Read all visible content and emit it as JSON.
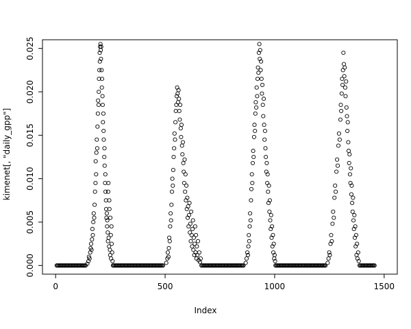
{
  "figure": {
    "background": "#ffffff",
    "point_color": "#000000",
    "axis_color": "#000000"
  },
  "chart_data": {
    "type": "scatter",
    "title": "",
    "xlabel": "Index",
    "ylabel": "kimenet[, \"daily_gpp\"]",
    "marker": "open-circle",
    "grid": false,
    "legend": false,
    "xlim": [
      -60,
      1560
    ],
    "ylim": [
      -0.001,
      0.026
    ],
    "x_ticks": [
      0,
      500,
      1000,
      1500
    ],
    "x_tick_labels": [
      "0",
      "500",
      "1000",
      "1500"
    ],
    "y_ticks": [
      0,
      0.005,
      0.01,
      0.015,
      0.02,
      0.025
    ],
    "y_tick_labels": [
      "0.000",
      "0.005",
      "0.010",
      "0.015",
      "0.020",
      "0.025"
    ],
    "zero_runs": [
      [
        5,
        140
      ],
      [
        262,
        492
      ],
      [
        666,
        858
      ],
      [
        1004,
        1232
      ],
      [
        1388,
        1458
      ]
    ],
    "zero_run_step": 4,
    "points": [
      [
        145,
        0.0002
      ],
      [
        150,
        0.0005
      ],
      [
        152,
        0.001
      ],
      [
        155,
        0.0008
      ],
      [
        158,
        0.0015
      ],
      [
        160,
        0.002
      ],
      [
        162,
        0.0025
      ],
      [
        164,
        0.0018
      ],
      [
        166,
        0.003
      ],
      [
        168,
        0.0042
      ],
      [
        170,
        0.0035
      ],
      [
        172,
        0.005
      ],
      [
        174,
        0.006
      ],
      [
        176,
        0.0055
      ],
      [
        178,
        0.007
      ],
      [
        180,
        0.0085
      ],
      [
        182,
        0.0095
      ],
      [
        183,
        0.012
      ],
      [
        185,
        0.0105
      ],
      [
        186,
        0.013
      ],
      [
        188,
        0.0145
      ],
      [
        190,
        0.0135
      ],
      [
        191,
        0.016
      ],
      [
        193,
        0.0175
      ],
      [
        194,
        0.019
      ],
      [
        196,
        0.0185
      ],
      [
        197,
        0.02
      ],
      [
        198,
        0.0215
      ],
      [
        200,
        0.0225
      ],
      [
        201,
        0.0245
      ],
      [
        202,
        0.0235
      ],
      [
        203,
        0.0252
      ],
      [
        205,
        0.0255
      ],
      [
        206,
        0.0248
      ],
      [
        207,
        0.0238
      ],
      [
        208,
        0.0252
      ],
      [
        210,
        0.0225
      ],
      [
        211,
        0.0205
      ],
      [
        212,
        0.0215
      ],
      [
        214,
        0.0195
      ],
      [
        215,
        0.0185
      ],
      [
        216,
        0.0165
      ],
      [
        218,
        0.0175
      ],
      [
        219,
        0.0155
      ],
      [
        220,
        0.0145
      ],
      [
        222,
        0.0125
      ],
      [
        223,
        0.0135
      ],
      [
        224,
        0.0115
      ],
      [
        226,
        0.0095
      ],
      [
        227,
        0.0105
      ],
      [
        228,
        0.0085
      ],
      [
        230,
        0.0075
      ],
      [
        231,
        0.0065
      ],
      [
        232,
        0.0055
      ],
      [
        234,
        0.006
      ],
      [
        235,
        0.0045
      ],
      [
        236,
        0.0052
      ],
      [
        238,
        0.0038
      ],
      [
        239,
        0.0028
      ],
      [
        240,
        0.0085
      ],
      [
        241,
        0.0095
      ],
      [
        242,
        0.0032
      ],
      [
        244,
        0.0022
      ],
      [
        245,
        0.0075
      ],
      [
        246,
        0.0065
      ],
      [
        248,
        0.0018
      ],
      [
        249,
        0.0012
      ],
      [
        250,
        0.0055
      ],
      [
        252,
        0.0035
      ],
      [
        253,
        0.0008
      ],
      [
        255,
        0.0045
      ],
      [
        256,
        0.0025
      ],
      [
        258,
        0.0015
      ],
      [
        260,
        0.0005
      ],
      [
        505,
        0.0003
      ],
      [
        510,
        0.0008
      ],
      [
        512,
        0.0015
      ],
      [
        515,
        0.001
      ],
      [
        517,
        0.002
      ],
      [
        519,
        0.0032
      ],
      [
        521,
        0.0028
      ],
      [
        523,
        0.0045
      ],
      [
        525,
        0.006
      ],
      [
        527,
        0.0052
      ],
      [
        529,
        0.007
      ],
      [
        531,
        0.0085
      ],
      [
        533,
        0.01
      ],
      [
        535,
        0.0092
      ],
      [
        537,
        0.011
      ],
      [
        539,
        0.0125
      ],
      [
        541,
        0.0135
      ],
      [
        543,
        0.0152
      ],
      [
        545,
        0.0145
      ],
      [
        547,
        0.0165
      ],
      [
        549,
        0.0178
      ],
      [
        551,
        0.0185
      ],
      [
        553,
        0.0195
      ],
      [
        555,
        0.0205
      ],
      [
        557,
        0.0198
      ],
      [
        559,
        0.0188
      ],
      [
        561,
        0.0202
      ],
      [
        563,
        0.0192
      ],
      [
        565,
        0.0178
      ],
      [
        567,
        0.0168
      ],
      [
        569,
        0.0185
      ],
      [
        571,
        0.0158
      ],
      [
        573,
        0.0148
      ],
      [
        575,
        0.0162
      ],
      [
        577,
        0.0138
      ],
      [
        579,
        0.0128
      ],
      [
        581,
        0.0142
      ],
      [
        583,
        0.0118
      ],
      [
        585,
        0.0108
      ],
      [
        587,
        0.0095
      ],
      [
        589,
        0.0122
      ],
      [
        591,
        0.0085
      ],
      [
        593,
        0.0105
      ],
      [
        595,
        0.0075
      ],
      [
        597,
        0.0092
      ],
      [
        599,
        0.0065
      ],
      [
        601,
        0.0078
      ],
      [
        603,
        0.0055
      ],
      [
        605,
        0.0068
      ],
      [
        607,
        0.0045
      ],
      [
        609,
        0.0058
      ],
      [
        611,
        0.0072
      ],
      [
        613,
        0.0038
      ],
      [
        615,
        0.0048
      ],
      [
        617,
        0.0028
      ],
      [
        619,
        0.0062
      ],
      [
        621,
        0.0035
      ],
      [
        623,
        0.0022
      ],
      [
        625,
        0.0042
      ],
      [
        627,
        0.0052
      ],
      [
        629,
        0.0018
      ],
      [
        631,
        0.0032
      ],
      [
        633,
        0.0012
      ],
      [
        635,
        0.0025
      ],
      [
        637,
        0.0045
      ],
      [
        639,
        0.0015
      ],
      [
        641,
        0.0035
      ],
      [
        643,
        0.0008
      ],
      [
        645,
        0.0022
      ],
      [
        647,
        0.0012
      ],
      [
        650,
        0.0028
      ],
      [
        653,
        0.0006
      ],
      [
        656,
        0.0015
      ],
      [
        659,
        0.0004
      ],
      [
        662,
        0.0008
      ],
      [
        868,
        0.0003
      ],
      [
        872,
        0.0008
      ],
      [
        875,
        0.0015
      ],
      [
        878,
        0.0012
      ],
      [
        880,
        0.0022
      ],
      [
        882,
        0.0035
      ],
      [
        884,
        0.0028
      ],
      [
        886,
        0.0045
      ],
      [
        888,
        0.006
      ],
      [
        890,
        0.0052
      ],
      [
        892,
        0.0075
      ],
      [
        894,
        0.0088
      ],
      [
        896,
        0.0105
      ],
      [
        898,
        0.0095
      ],
      [
        900,
        0.0118
      ],
      [
        902,
        0.0132
      ],
      [
        904,
        0.0125
      ],
      [
        906,
        0.0148
      ],
      [
        908,
        0.0162
      ],
      [
        910,
        0.0155
      ],
      [
        912,
        0.0175
      ],
      [
        914,
        0.0188
      ],
      [
        916,
        0.0182
      ],
      [
        918,
        0.0205
      ],
      [
        920,
        0.0195
      ],
      [
        922,
        0.0215
      ],
      [
        924,
        0.0228
      ],
      [
        926,
        0.0222
      ],
      [
        928,
        0.0245
      ],
      [
        930,
        0.0255
      ],
      [
        932,
        0.0238
      ],
      [
        934,
        0.0248
      ],
      [
        936,
        0.0225
      ],
      [
        938,
        0.0235
      ],
      [
        940,
        0.0215
      ],
      [
        942,
        0.0198
      ],
      [
        944,
        0.0208
      ],
      [
        946,
        0.0185
      ],
      [
        948,
        0.0172
      ],
      [
        950,
        0.0192
      ],
      [
        952,
        0.0162
      ],
      [
        954,
        0.0145
      ],
      [
        956,
        0.0155
      ],
      [
        958,
        0.0135
      ],
      [
        960,
        0.0125
      ],
      [
        962,
        0.0108
      ],
      [
        964,
        0.0118
      ],
      [
        966,
        0.0095
      ],
      [
        968,
        0.0105
      ],
      [
        970,
        0.0085
      ],
      [
        972,
        0.0072
      ],
      [
        974,
        0.0092
      ],
      [
        976,
        0.0062
      ],
      [
        978,
        0.0075
      ],
      [
        980,
        0.0052
      ],
      [
        982,
        0.0042
      ],
      [
        984,
        0.0058
      ],
      [
        986,
        0.0032
      ],
      [
        988,
        0.0045
      ],
      [
        990,
        0.0022
      ],
      [
        992,
        0.0035
      ],
      [
        994,
        0.0015
      ],
      [
        996,
        0.0025
      ],
      [
        998,
        0.0008
      ],
      [
        1000,
        0.0012
      ],
      [
        1002,
        0.0005
      ],
      [
        1242,
        0.0003
      ],
      [
        1246,
        0.0008
      ],
      [
        1249,
        0.0015
      ],
      [
        1252,
        0.0012
      ],
      [
        1255,
        0.0025
      ],
      [
        1258,
        0.0035
      ],
      [
        1261,
        0.0028
      ],
      [
        1264,
        0.0048
      ],
      [
        1267,
        0.0062
      ],
      [
        1270,
        0.0055
      ],
      [
        1273,
        0.0078
      ],
      [
        1276,
        0.0092
      ],
      [
        1279,
        0.0085
      ],
      [
        1282,
        0.0108
      ],
      [
        1285,
        0.0122
      ],
      [
        1288,
        0.0115
      ],
      [
        1291,
        0.0138
      ],
      [
        1294,
        0.0152
      ],
      [
        1297,
        0.0145
      ],
      [
        1300,
        0.0168
      ],
      [
        1302,
        0.0185
      ],
      [
        1304,
        0.0178
      ],
      [
        1306,
        0.0198
      ],
      [
        1308,
        0.0215
      ],
      [
        1310,
        0.0208
      ],
      [
        1312,
        0.0225
      ],
      [
        1314,
        0.0245
      ],
      [
        1316,
        0.0232
      ],
      [
        1318,
        0.0218
      ],
      [
        1320,
        0.0228
      ],
      [
        1322,
        0.0205
      ],
      [
        1324,
        0.0195
      ],
      [
        1326,
        0.0212
      ],
      [
        1328,
        0.0182
      ],
      [
        1330,
        0.0172
      ],
      [
        1332,
        0.0155
      ],
      [
        1334,
        0.0165
      ],
      [
        1336,
        0.0142
      ],
      [
        1338,
        0.0132
      ],
      [
        1340,
        0.0118
      ],
      [
        1342,
        0.0128
      ],
      [
        1344,
        0.0105
      ],
      [
        1346,
        0.0095
      ],
      [
        1348,
        0.0112
      ],
      [
        1350,
        0.0082
      ],
      [
        1352,
        0.0092
      ],
      [
        1354,
        0.0072
      ],
      [
        1356,
        0.0062
      ],
      [
        1358,
        0.0078
      ],
      [
        1360,
        0.0052
      ],
      [
        1362,
        0.0042
      ],
      [
        1364,
        0.0058
      ],
      [
        1366,
        0.0032
      ],
      [
        1368,
        0.0045
      ],
      [
        1370,
        0.0022
      ],
      [
        1372,
        0.0035
      ],
      [
        1374,
        0.0012
      ],
      [
        1376,
        0.0025
      ],
      [
        1378,
        0.0008
      ],
      [
        1381,
        0.0015
      ],
      [
        1384,
        0.0005
      ]
    ]
  }
}
